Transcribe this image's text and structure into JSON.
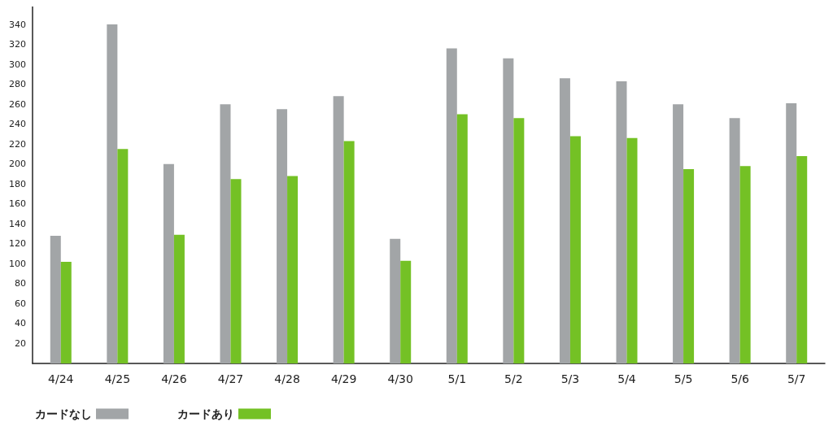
{
  "chart_data": {
    "type": "bar",
    "categories": [
      "4/24",
      "4/25",
      "4/26",
      "4/27",
      "4/28",
      "4/29",
      "4/30",
      "5/1",
      "5/2",
      "5/3",
      "5/4",
      "5/5",
      "5/6",
      "5/7"
    ],
    "series": [
      {
        "name": "カードなし",
        "color": "#a2a5a7",
        "values": [
          128,
          340,
          200,
          260,
          255,
          268,
          125,
          316,
          306,
          286,
          283,
          260,
          246,
          261
        ]
      },
      {
        "name": "カードあり",
        "color": "#74c125",
        "values": [
          102,
          215,
          129,
          185,
          188,
          223,
          103,
          250,
          246,
          228,
          226,
          195,
          198,
          208
        ]
      }
    ],
    "ylim": [
      0,
      358
    ],
    "yticks": [
      20,
      40,
      60,
      80,
      100,
      120,
      140,
      160,
      180,
      200,
      220,
      240,
      260,
      280,
      300,
      320,
      340
    ],
    "grid": false,
    "legend": "bottom left"
  }
}
